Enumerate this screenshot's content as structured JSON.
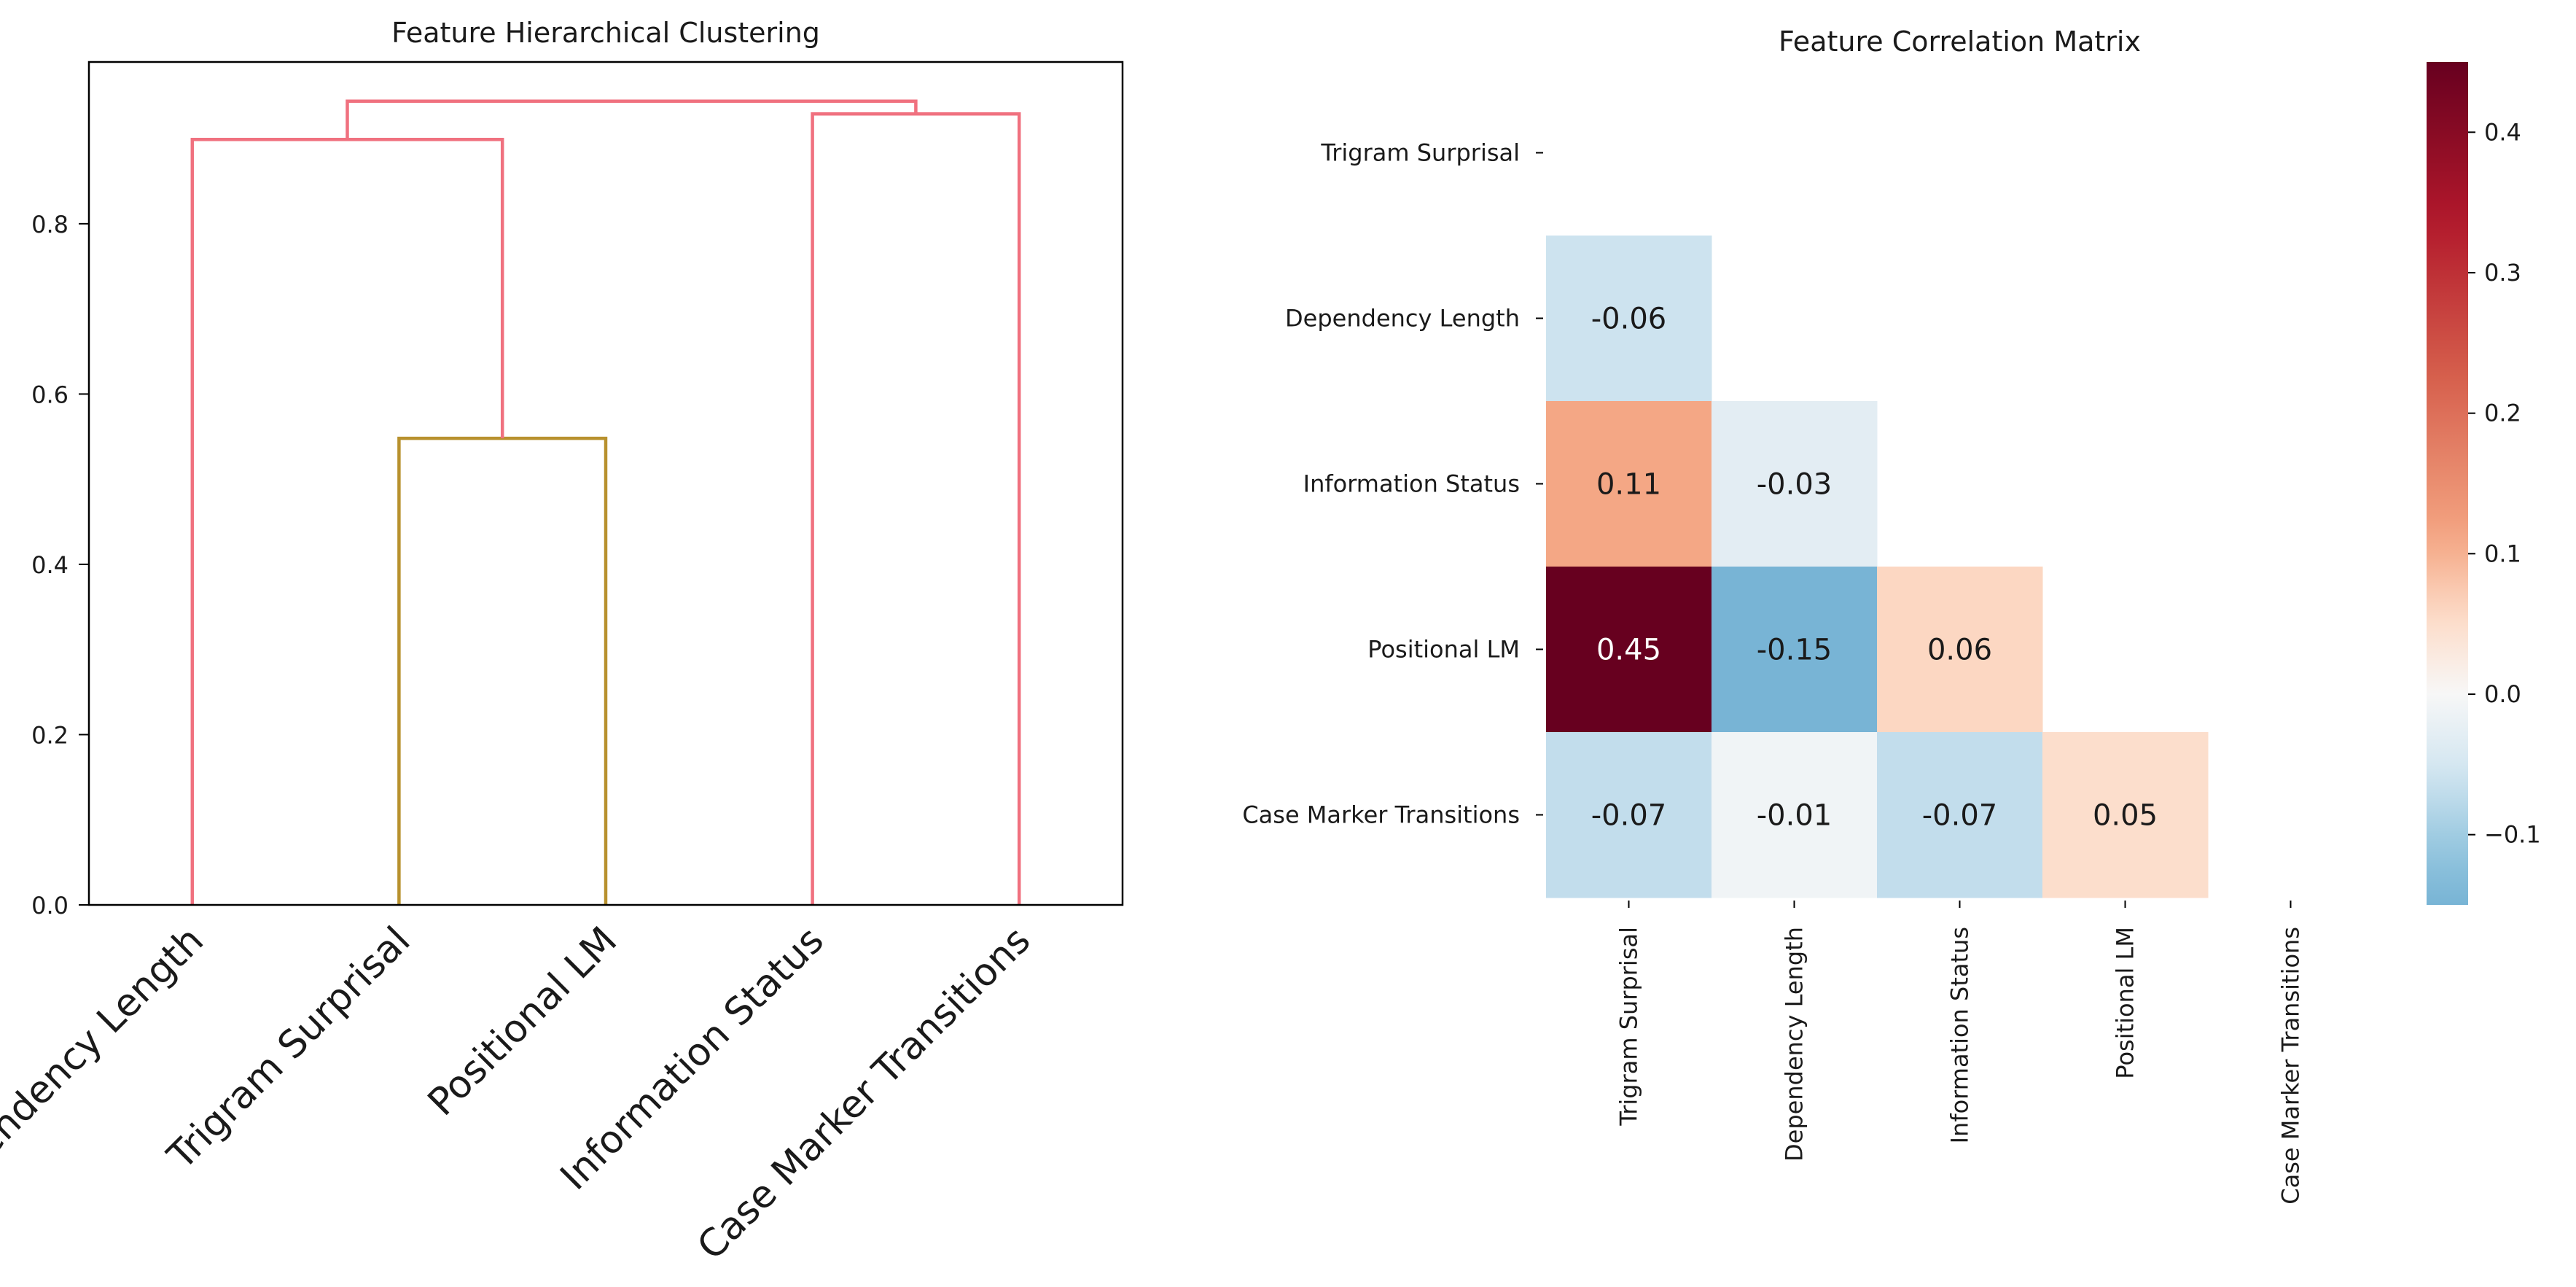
{
  "chart_data": [
    {
      "type": "dendrogram",
      "title": "Feature Hierarchical Clustering",
      "leaves": [
        "Dependency Length",
        "Trigram Surprisal",
        "Positional LM",
        "Information Status",
        "Case Marker Transitions"
      ],
      "yticks": [
        0.0,
        0.2,
        0.4,
        0.6,
        0.8
      ],
      "ylim": [
        0,
        0.99
      ],
      "merges": [
        {
          "id": "c1",
          "left": "Trigram Surprisal",
          "right": "Positional LM",
          "height": 0.548,
          "color": "#b8912e"
        },
        {
          "id": "c2",
          "left": "Dependency Length",
          "right": "c1",
          "height": 0.899,
          "color": "#f0717f"
        },
        {
          "id": "c3",
          "left": "Information Status",
          "right": "Case Marker Transitions",
          "height": 0.929,
          "color": "#f0717f"
        },
        {
          "id": "c4",
          "left": "c2",
          "right": "c3",
          "height": 0.944,
          "color": "#f0717f"
        }
      ]
    },
    {
      "type": "heatmap",
      "title": "Feature Correlation Matrix",
      "labels": [
        "Trigram Surprisal",
        "Dependency Length",
        "Information Status",
        "Positional LM",
        "Case Marker Transitions"
      ],
      "mask": "upper triangle incl. diagonal",
      "cells": [
        {
          "row": 1,
          "col": 0,
          "value": -0.06
        },
        {
          "row": 2,
          "col": 0,
          "value": 0.11
        },
        {
          "row": 2,
          "col": 1,
          "value": -0.03
        },
        {
          "row": 3,
          "col": 0,
          "value": 0.45
        },
        {
          "row": 3,
          "col": 1,
          "value": -0.15
        },
        {
          "row": 3,
          "col": 2,
          "value": 0.06
        },
        {
          "row": 4,
          "col": 0,
          "value": -0.07
        },
        {
          "row": 4,
          "col": 1,
          "value": -0.01
        },
        {
          "row": 4,
          "col": 2,
          "value": -0.07
        },
        {
          "row": 4,
          "col": 3,
          "value": 0.05
        }
      ],
      "colormap": "RdBu_r",
      "colorbar": {
        "min": -0.15,
        "max": 0.45,
        "center": 0.0,
        "ticks": [
          -0.1,
          0.0,
          0.1,
          0.2,
          0.3,
          0.4
        ],
        "tick_labels": [
          "−0.1",
          "0.0",
          "0.1",
          "0.2",
          "0.3",
          "0.4"
        ]
      }
    }
  ]
}
